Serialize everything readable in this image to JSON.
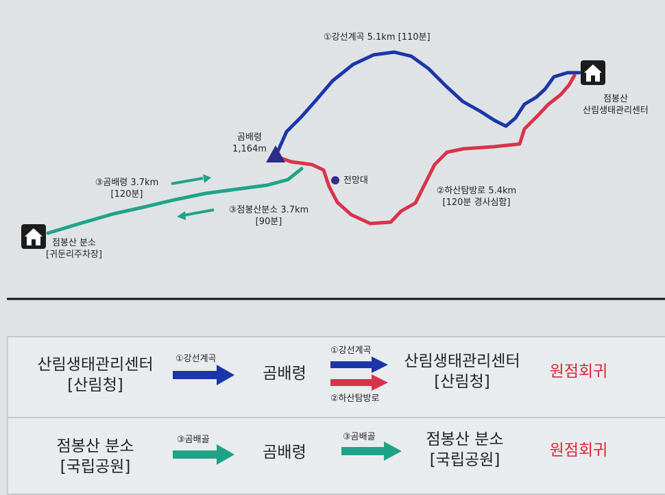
{
  "map": {
    "summit": {
      "name": "곰배령",
      "elevation": "1,164m"
    },
    "viewpoint": "전망대",
    "center": {
      "line1": "점봉산",
      "line2": "산림생태관리센터"
    },
    "branch": {
      "line1": "점봉산 분소",
      "line2": "[귀둔리주차장]"
    },
    "trail1": "①강선계곡 5.1km [110분]",
    "trail2": {
      "line1": "②하산탐방로 5.4km",
      "line2": "[120분 경사심함]"
    },
    "trail3_up": {
      "line1": "③곰배령 3.7km",
      "line2": "[120분]"
    },
    "trail3_down": {
      "line1": "③점봉산분소 3.7km",
      "line2": "[90분]"
    }
  },
  "legend": {
    "row1": {
      "start": {
        "line1": "산림생태관리센터",
        "line2": "[산림청]"
      },
      "arrow1_label": "①강선계곡",
      "middle": "곰배령",
      "arrow2_top_label": "①강선계곡",
      "arrow2_bottom_label": "②하산탐방로",
      "end": {
        "line1": "산림생태관리센터",
        "line2": "[산림청]"
      },
      "result": "원점회귀"
    },
    "row2": {
      "start": {
        "line1": "점봉산 분소",
        "line2": "[국립공원]"
      },
      "arrow1_label": "③곰배골",
      "middle": "곰배령",
      "arrow2_label": "③곰배골",
      "end": {
        "line1": "점봉산 분소",
        "line2": "[국립공원]"
      },
      "result": "원점회귀"
    }
  },
  "colors": {
    "trail_blue": "#1b36a8",
    "trail_red": "#d8334a",
    "trail_green": "#1fa387",
    "summit_marker": "#2e2b8a",
    "text_red": "#d8283a",
    "divider": "#111111"
  },
  "icons": {
    "station": "house-icon",
    "summit": "triangle-summit-icon",
    "viewpoint": "dot-icon",
    "arrows": "arrow-right-icon"
  }
}
